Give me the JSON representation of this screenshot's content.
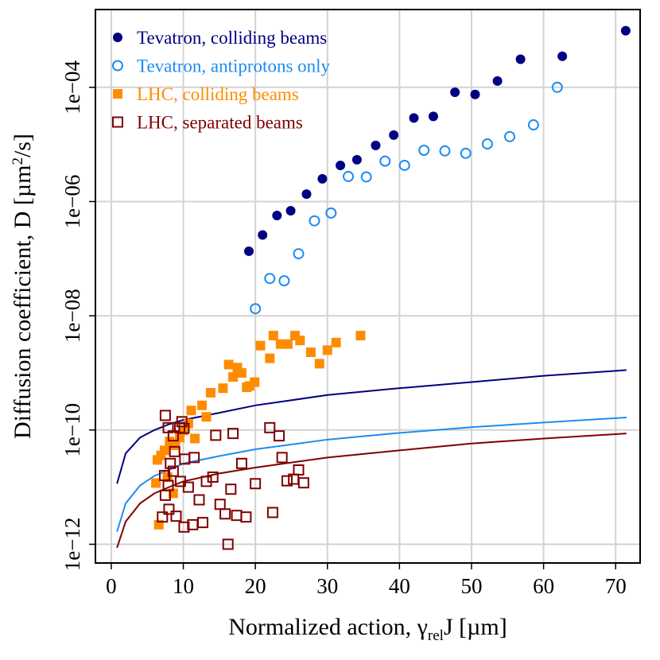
{
  "chart_data": {
    "type": "scatter",
    "yscale": "log",
    "grid": true,
    "legend": "top-left",
    "xlabel": {
      "text": "Normalized action, γ",
      "sub": "rel",
      "tail": "J [µm]"
    },
    "ylabel": {
      "text": "Diffusion coefficient, D [µm",
      "sup": "2",
      "tail": "/s]"
    },
    "xlim": [
      -2.2,
      73.4
    ],
    "ylim": [
      4.7e-13,
      0.0023
    ],
    "xticks": [
      0,
      10,
      20,
      30,
      40,
      50,
      60,
      70
    ],
    "yticks": [
      {
        "value": 1e-12,
        "label": "1e−12"
      },
      {
        "value": 1e-10,
        "label": "1e−10"
      },
      {
        "value": 1e-08,
        "label": "1e−08"
      },
      {
        "value": 1e-06,
        "label": "1e−06"
      },
      {
        "value": 0.0001,
        "label": "1e−04"
      }
    ],
    "series": [
      {
        "name": "Tevatron, colliding beams",
        "color": "#000080",
        "marker": "circle",
        "x": [
          19.1,
          21.0,
          23.0,
          24.9,
          27.1,
          29.3,
          31.8,
          34.1,
          36.7,
          39.2,
          42.0,
          44.7,
          47.7,
          50.5,
          53.6,
          56.8,
          62.6,
          71.4
        ],
        "values": [
          1.35e-07,
          2.6e-07,
          5.7e-07,
          6.9e-07,
          1.35e-06,
          2.5e-06,
          4.3e-06,
          5.4e-06,
          9.6e-06,
          1.46e-05,
          2.9e-05,
          3.1e-05,
          8.2e-05,
          7.5e-05,
          0.000129,
          0.00031,
          0.00035,
          0.00098
        ]
      },
      {
        "name": "Tevatron, antiprotons only",
        "color": "#1e8cf0",
        "marker": "circle-open",
        "x": [
          20.0,
          22.0,
          24.0,
          26.0,
          28.2,
          30.5,
          32.9,
          35.4,
          38.0,
          40.7,
          43.4,
          46.3,
          49.2,
          52.2,
          55.3,
          58.6,
          61.9
        ],
        "values": [
          1.33e-08,
          4.5e-08,
          4.1e-08,
          1.22e-07,
          4.6e-07,
          6.3e-07,
          2.75e-06,
          2.7e-06,
          5.1e-06,
          4.3e-06,
          7.9e-06,
          7.7e-06,
          7e-06,
          1.02e-05,
          1.37e-05,
          2.2e-05,
          0.0001
        ]
      },
      {
        "name": "LHC, colliding beams",
        "color": "#ff8c00",
        "marker": "square",
        "x": [
          6.2,
          6.4,
          6.6,
          6.9,
          7.4,
          7.8,
          8.1,
          8.6,
          8.9,
          9.5,
          10.0,
          10.7,
          11.1,
          11.6,
          12.6,
          13.2,
          13.8,
          15.5,
          16.3,
          16.9,
          17.5,
          18.1,
          18.8,
          19.2,
          19.9,
          20.7,
          22.0,
          22.5,
          23.5,
          24.5,
          25.5,
          26.2,
          27.7,
          28.9,
          30.0,
          31.2,
          34.6
        ],
        "values": [
          1.18e-11,
          3e-11,
          2.2e-12,
          3.6e-11,
          4.4e-11,
          1.5e-11,
          6.3e-11,
          7.8e-12,
          5.4e-11,
          7.4e-11,
          9.8e-11,
          1.3e-10,
          2.2e-10,
          7.1e-11,
          2.7e-10,
          1.7e-10,
          4.5e-10,
          5.4e-10,
          1.4e-09,
          8.5e-10,
          1.24e-09,
          1e-09,
          5.6e-10,
          5.9e-10,
          6.9e-10,
          3e-09,
          1.8e-09,
          4.5e-09,
          3.2e-09,
          3.2e-09,
          4.5e-09,
          3.7e-09,
          2.3e-09,
          1.45e-09,
          2.5e-09,
          3.4e-09,
          4.5e-09
        ]
      },
      {
        "name": "LHC, separated beams",
        "color": "#800000",
        "marker": "square-open",
        "x": [
          7.9,
          8.6,
          9.5,
          10.1,
          7.5,
          9.8,
          8.8,
          8.2,
          7.4,
          7.9,
          8.6,
          7.5,
          9.6,
          10.2,
          10.7,
          11.5,
          7.1,
          8.0,
          9.0,
          10.1,
          11.3,
          12.7,
          12.2,
          13.2,
          14.1,
          14.5,
          15.1,
          15.8,
          16.2,
          16.6,
          16.9,
          17.4,
          18.1,
          18.7,
          20.0,
          22.0,
          22.4,
          23.3,
          23.7,
          24.4,
          25.3,
          26.0,
          26.7
        ],
        "values": [
          1.1e-10,
          7.9e-11,
          1.1e-10,
          1.07e-10,
          1.8e-10,
          1.4e-10,
          4.2e-11,
          2.6e-11,
          1.6e-11,
          1.07e-11,
          1.9e-11,
          7.2e-12,
          1.26e-11,
          3.1e-11,
          1e-11,
          3.3e-11,
          3e-12,
          4.1e-12,
          3.1e-12,
          2e-12,
          2.2e-12,
          2.4e-12,
          6e-12,
          1.26e-11,
          1.5e-11,
          8.1e-11,
          5e-12,
          3.4e-12,
          1e-12,
          9.2e-12,
          8.7e-11,
          3.2e-12,
          2.6e-11,
          3e-12,
          1.15e-11,
          1.1e-10,
          3.6e-12,
          7.9e-11,
          3.3e-11,
          1.29e-11,
          1.38e-11,
          2e-11,
          1.19e-11
        ]
      }
    ],
    "lines": [
      {
        "color": "#000080",
        "x": [
          0.8,
          2,
          4,
          6,
          8,
          10,
          15,
          20,
          30,
          40,
          50,
          60,
          71.5
        ],
        "values": [
          1.15e-11,
          3.9e-11,
          7.4e-11,
          1e-10,
          1.26e-10,
          1.5e-10,
          2e-10,
          2.7e-10,
          4.1e-10,
          5.4e-10,
          6.9e-10,
          8.9e-10,
          1.12e-09
        ]
      },
      {
        "color": "#1e8cf0",
        "x": [
          0.8,
          2,
          4,
          6,
          8,
          10,
          15,
          20,
          30,
          40,
          50,
          60,
          71.5
        ],
        "values": [
          1.66e-12,
          5.2e-12,
          1.07e-11,
          1.58e-11,
          2e-11,
          2.6e-11,
          3.5e-11,
          4.6e-11,
          6.8e-11,
          8.9e-11,
          1.12e-10,
          1.35e-10,
          1.66e-10
        ]
      },
      {
        "color": "#800000",
        "x": [
          0.8,
          2,
          4,
          6,
          8,
          10,
          15,
          20,
          30,
          40,
          50,
          60,
          71.5
        ],
        "values": [
          8.7e-13,
          2.5e-12,
          5.2e-12,
          7.8e-12,
          1e-11,
          1.26e-11,
          1.74e-11,
          2.2e-11,
          3.3e-11,
          4.4e-11,
          5.8e-11,
          7.1e-11,
          8.7e-11
        ]
      }
    ]
  }
}
